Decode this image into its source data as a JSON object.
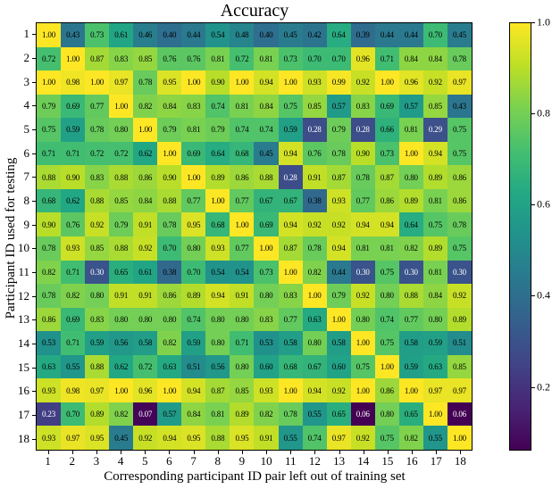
{
  "chart_data": {
    "type": "heatmap",
    "title": "Accuracy",
    "xlabel": "Corresponding participant ID pair left out of training set",
    "ylabel": "Participant ID used for testing",
    "x_tick_labels": [
      "1",
      "2",
      "3",
      "4",
      "5",
      "6",
      "7",
      "8",
      "9",
      "10",
      "11",
      "12",
      "13",
      "14",
      "15",
      "16",
      "17",
      "18"
    ],
    "y_tick_labels": [
      "1",
      "2",
      "3",
      "4",
      "5",
      "6",
      "7",
      "8",
      "9",
      "10",
      "11",
      "12",
      "13",
      "14",
      "15",
      "16",
      "17",
      "18"
    ],
    "matrix": [
      [
        1.0,
        0.43,
        0.73,
        0.61,
        0.46,
        0.4,
        0.44,
        0.54,
        0.48,
        0.4,
        0.45,
        0.42,
        0.64,
        0.39,
        0.44,
        0.44,
        0.7,
        0.45
      ],
      [
        0.72,
        1.0,
        0.87,
        0.83,
        0.85,
        0.76,
        0.76,
        0.81,
        0.72,
        0.81,
        0.73,
        0.7,
        0.7,
        0.96,
        0.71,
        0.84,
        0.84,
        0.78
      ],
      [
        1.0,
        0.98,
        1.0,
        0.97,
        0.78,
        0.95,
        1.0,
        0.9,
        1.0,
        0.94,
        1.0,
        0.93,
        0.99,
        0.92,
        1.0,
        0.96,
        0.92,
        0.97
      ],
      [
        0.79,
        0.69,
        0.77,
        1.0,
        0.82,
        0.84,
        0.83,
        0.74,
        0.81,
        0.84,
        0.75,
        0.85,
        0.57,
        0.83,
        0.69,
        0.57,
        0.85,
        0.43
      ],
      [
        0.75,
        0.59,
        0.78,
        0.8,
        1.0,
        0.79,
        0.81,
        0.79,
        0.74,
        0.74,
        0.59,
        0.28,
        0.79,
        0.28,
        0.66,
        0.81,
        0.29,
        0.75
      ],
      [
        0.71,
        0.71,
        0.72,
        0.72,
        0.62,
        1.0,
        0.69,
        0.64,
        0.68,
        0.45,
        0.94,
        0.76,
        0.78,
        0.9,
        0.73,
        1.0,
        0.94,
        0.75
      ],
      [
        0.88,
        0.9,
        0.83,
        0.88,
        0.86,
        0.9,
        1.0,
        0.89,
        0.86,
        0.88,
        0.28,
        0.91,
        0.87,
        0.78,
        0.87,
        0.8,
        0.89,
        0.86
      ],
      [
        0.68,
        0.62,
        0.88,
        0.85,
        0.84,
        0.88,
        0.77,
        1.0,
        0.77,
        0.67,
        0.67,
        0.38,
        0.93,
        0.77,
        0.86,
        0.89,
        0.81,
        0.86
      ],
      [
        0.9,
        0.76,
        0.92,
        0.79,
        0.91,
        0.78,
        0.95,
        0.68,
        1.0,
        0.69,
        0.94,
        0.92,
        0.92,
        0.94,
        0.94,
        0.64,
        0.75,
        0.78
      ],
      [
        0.78,
        0.93,
        0.85,
        0.88,
        0.92,
        0.7,
        0.8,
        0.93,
        0.77,
        1.0,
        0.87,
        0.78,
        0.94,
        0.81,
        0.81,
        0.82,
        0.89,
        0.75
      ],
      [
        0.82,
        0.71,
        0.3,
        0.65,
        0.61,
        0.38,
        0.7,
        0.54,
        0.54,
        0.73,
        1.0,
        0.82,
        0.44,
        0.3,
        0.75,
        0.3,
        0.81,
        0.3
      ],
      [
        0.78,
        0.82,
        0.8,
        0.91,
        0.91,
        0.86,
        0.89,
        0.94,
        0.91,
        0.8,
        0.83,
        1.0,
        0.79,
        0.92,
        0.8,
        0.88,
        0.84,
        0.92
      ],
      [
        0.86,
        0.69,
        0.83,
        0.8,
        0.8,
        0.8,
        0.74,
        0.8,
        0.8,
        0.83,
        0.77,
        0.63,
        1.0,
        0.8,
        0.74,
        0.77,
        0.8,
        0.89
      ],
      [
        0.53,
        0.71,
        0.59,
        0.56,
        0.58,
        0.82,
        0.59,
        0.8,
        0.71,
        0.53,
        0.58,
        0.8,
        0.58,
        1.0,
        0.75,
        0.58,
        0.59,
        0.51
      ],
      [
        0.63,
        0.55,
        0.88,
        0.62,
        0.72,
        0.63,
        0.51,
        0.56,
        0.8,
        0.6,
        0.68,
        0.67,
        0.6,
        0.75,
        1.0,
        0.59,
        0.63,
        0.85
      ],
      [
        0.93,
        0.98,
        0.97,
        1.0,
        0.96,
        1.0,
        0.94,
        0.87,
        0.85,
        0.93,
        1.0,
        0.94,
        0.92,
        1.0,
        0.86,
        1.0,
        0.97,
        0.97
      ],
      [
        0.23,
        0.7,
        0.89,
        0.82,
        0.07,
        0.57,
        0.84,
        0.81,
        0.89,
        0.82,
        0.78,
        0.55,
        0.65,
        0.06,
        0.8,
        0.65,
        1.0,
        0.06
      ],
      [
        0.93,
        0.97,
        0.95,
        0.45,
        0.92,
        0.94,
        0.95,
        0.88,
        0.95,
        0.91,
        0.55,
        0.74,
        0.97,
        0.92,
        0.75,
        0.82,
        0.55,
        1.0
      ]
    ],
    "value_format_decimals": 2,
    "vmin": 0.06,
    "vmax": 1.0,
    "colorbar": {
      "tick_values": [
        1.0,
        0.8,
        0.6,
        0.4,
        0.2
      ],
      "tick_labels": [
        "1.0",
        "0.8",
        "0.6",
        "0.4",
        "0.2"
      ],
      "position": "right"
    },
    "colormap": {
      "name": "viridis",
      "stops": [
        "#440154",
        "#482475",
        "#414487",
        "#355f8d",
        "#2a788e",
        "#21918c",
        "#22a884",
        "#44bf70",
        "#7ad151",
        "#bddf26",
        "#fde725"
      ]
    },
    "annotation_text_colors": {
      "dark_cells": "#ffffff",
      "light_cells": "#000000",
      "white_text_below": 0.35
    },
    "border_color": "#000000",
    "background_color": "#ffffff"
  }
}
